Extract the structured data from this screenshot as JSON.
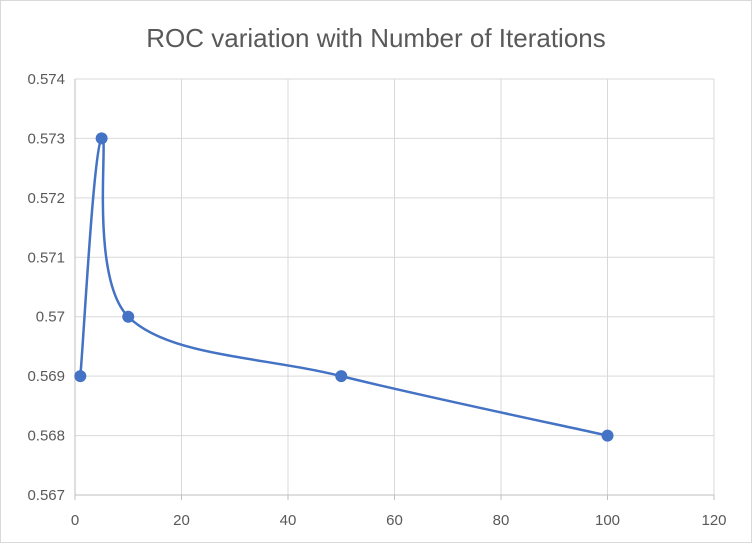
{
  "chart_data": {
    "type": "scatter",
    "title": "ROC variation with Number of Iterations",
    "xlabel": "",
    "ylabel": "",
    "x": [
      1,
      5,
      10,
      50,
      100
    ],
    "y": [
      0.569,
      0.573,
      0.57,
      0.569,
      0.568
    ],
    "xlim": [
      0,
      120
    ],
    "ylim": [
      0.567,
      0.574
    ],
    "xticks": [
      "0",
      "20",
      "40",
      "60",
      "80",
      "100",
      "120"
    ],
    "yticks": [
      "0.567",
      "0.568",
      "0.569",
      "0.57",
      "0.571",
      "0.572",
      "0.573",
      "0.574"
    ],
    "smoothed_line": true,
    "markers": true,
    "grid": true,
    "legend": "none",
    "series_color": "#4472c4",
    "grid_color": "#d9d9d9",
    "text_color": "#595959"
  }
}
